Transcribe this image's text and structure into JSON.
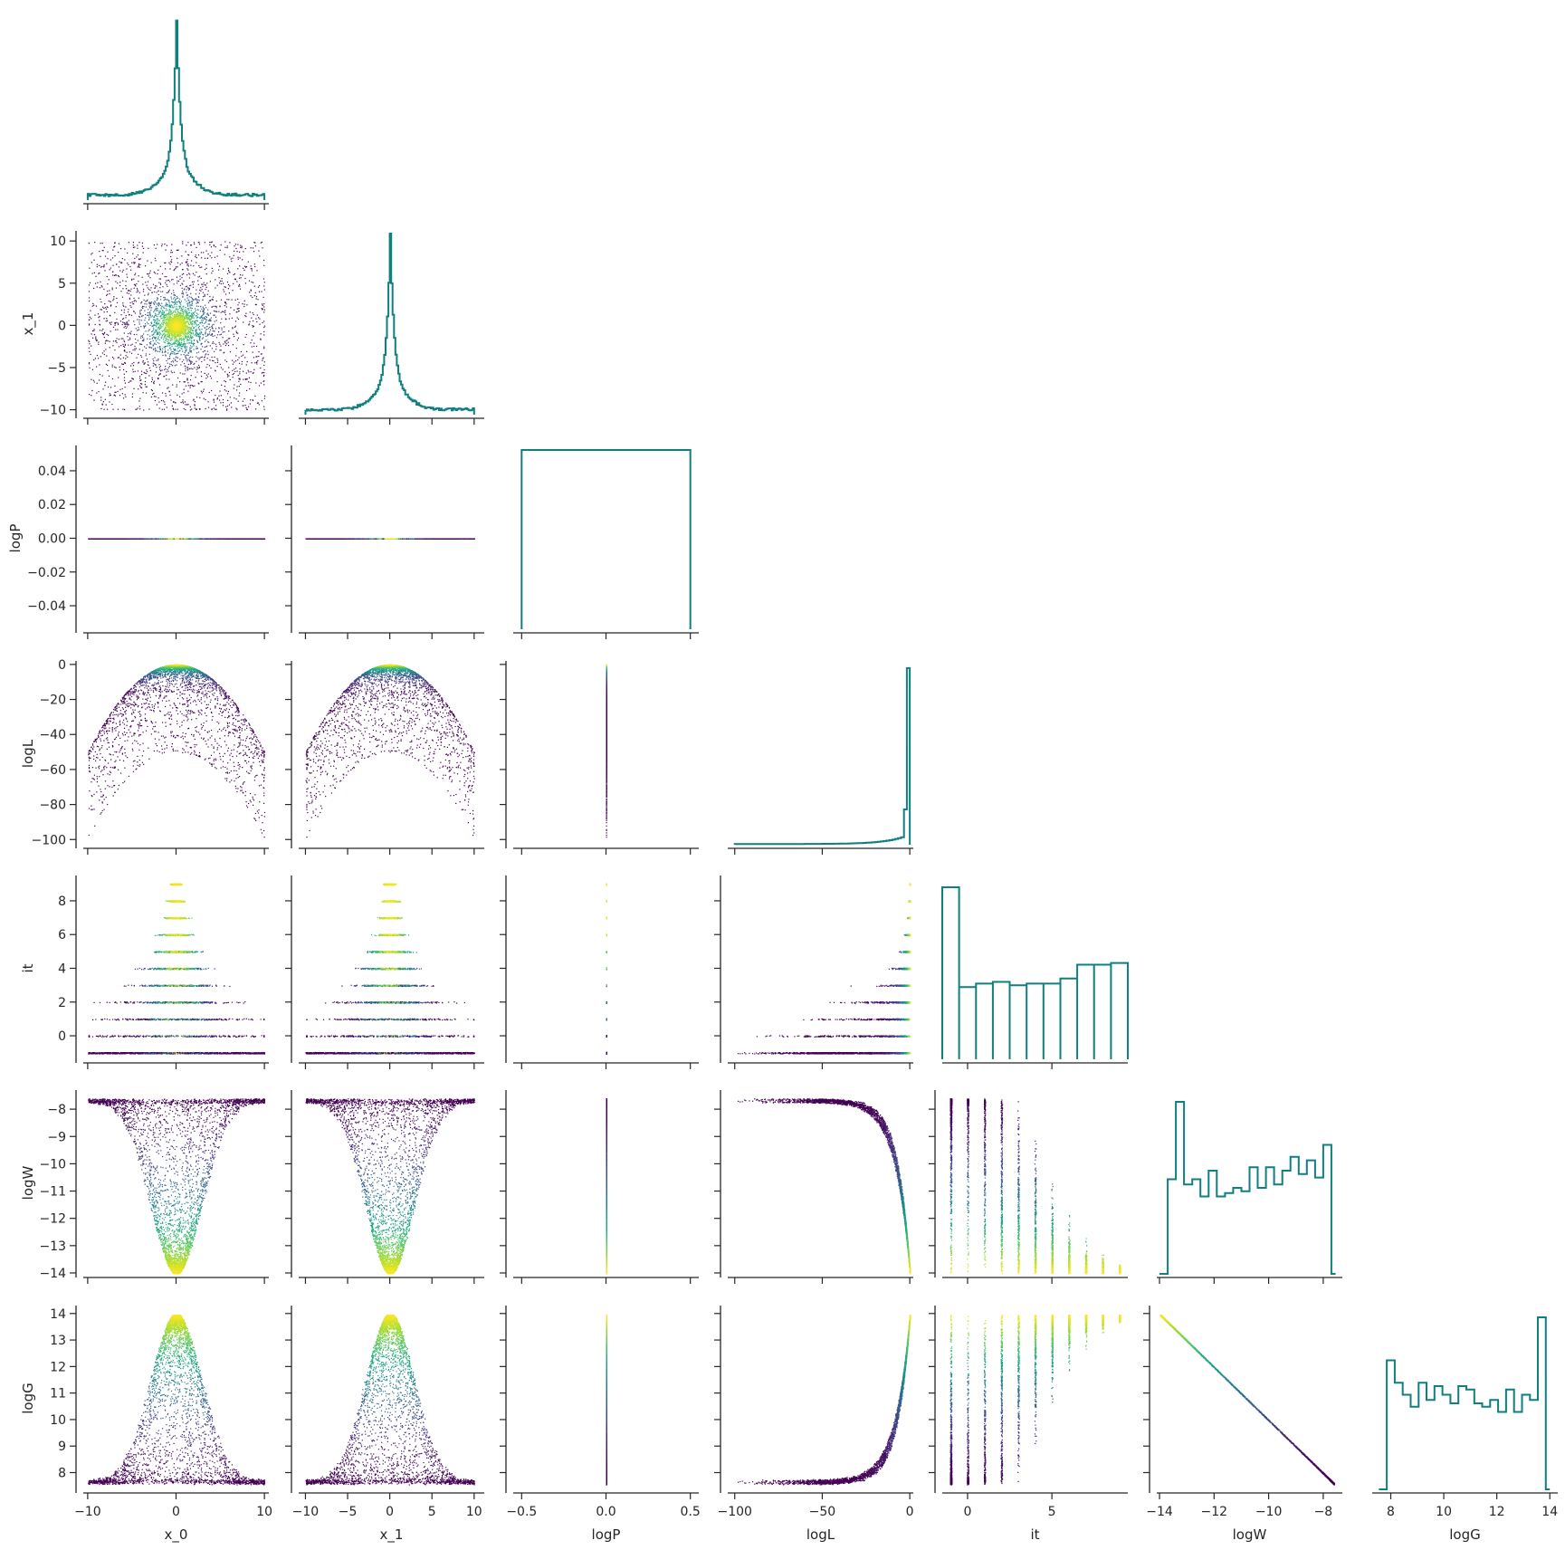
{
  "chart_data": {
    "type": "corner",
    "variables": [
      "x_0",
      "x_1",
      "logP",
      "logL",
      "it",
      "logW",
      "logG"
    ],
    "colormap": "viridis",
    "histogram_color": "#0f7f80",
    "grid": false,
    "axes": {
      "x_0": {
        "range": [
          -10.5,
          10.5
        ],
        "ticks": [
          -10,
          0,
          10
        ],
        "tick_labels": [
          "−10",
          "0",
          "10"
        ]
      },
      "x_1": {
        "range": [
          -10.8,
          11.2
        ],
        "ticks": [
          -10,
          -5,
          0,
          5,
          10
        ],
        "tick_labels": [
          "−10",
          "−5",
          "0",
          "5",
          "10"
        ]
      },
      "logP": {
        "range": [
          -0.055,
          0.055
        ],
        "ticks": [
          -0.04,
          -0.02,
          0.0,
          0.02,
          0.04
        ],
        "tick_labels": [
          "−0.04",
          "−0.02",
          "0.00",
          "0.02",
          "0.04"
        ],
        "x_range": [
          -0.55,
          0.55
        ],
        "x_ticks": [
          -0.5,
          0.0,
          0.5
        ],
        "x_tick_labels": [
          "−0.5",
          "0.0",
          "0.5"
        ]
      },
      "logL": {
        "range": [
          -104,
          2
        ],
        "ticks": [
          -100,
          -80,
          -60,
          -40,
          -20,
          0
        ],
        "tick_labels": [
          "−100",
          "−80",
          "−60",
          "−40",
          "−20",
          "0"
        ],
        "x_ticks": [
          -100,
          -50,
          0
        ],
        "x_tick_labels": [
          "−100",
          "−50",
          "0"
        ]
      },
      "it": {
        "range": [
          -1.5,
          9.5
        ],
        "ticks": [
          0,
          2,
          4,
          6,
          8
        ],
        "tick_labels": [
          "0",
          "2",
          "4",
          "6",
          "8"
        ],
        "x_ticks": [
          0,
          5
        ],
        "x_tick_labels": [
          "0",
          "5"
        ]
      },
      "logW": {
        "range": [
          -14.1,
          -7.3
        ],
        "ticks": [
          -14,
          -13,
          -12,
          -11,
          -10,
          -9,
          -8
        ],
        "tick_labels": [
          "−14",
          "−13",
          "−12",
          "−11",
          "−10",
          "−9",
          "−8"
        ],
        "x_ticks": [
          -14,
          -12,
          -10,
          -8
        ],
        "x_tick_labels": [
          "−14",
          "−12",
          "−10",
          "−8"
        ]
      },
      "logG": {
        "range": [
          7.3,
          14.3
        ],
        "ticks": [
          8,
          9,
          10,
          11,
          12,
          13,
          14
        ],
        "tick_labels": [
          "8",
          "9",
          "10",
          "11",
          "12",
          "13",
          "14"
        ],
        "x_ticks": [
          8,
          10,
          12,
          14
        ],
        "x_tick_labels": [
          "8",
          "10",
          "12",
          "14"
        ]
      }
    },
    "histograms": {
      "x_0": {
        "shape": "peaked",
        "center": 0,
        "approx_mode_count": 1
      },
      "x_1": {
        "shape": "peaked",
        "center": 0,
        "approx_mode_count": 1
      },
      "logP": {
        "shape": "single-bin",
        "value": 0.0
      },
      "logL": {
        "shape": "spike-at-max",
        "peak": -1
      },
      "it": {
        "bins": [
          -1,
          0,
          1,
          2,
          3,
          4,
          5,
          6,
          7,
          8,
          9
        ],
        "relative_heights": [
          1.0,
          0.42,
          0.44,
          0.45,
          0.43,
          0.44,
          0.44,
          0.47,
          0.55,
          0.55,
          0.56
        ]
      },
      "logW": {
        "edges": [
          -14.0,
          -13.7,
          -13.4,
          -13.1,
          -12.8,
          -12.5,
          -12.2,
          -11.9,
          -11.6,
          -11.3,
          -11.0,
          -10.7,
          -10.4,
          -10.1,
          -9.8,
          -9.5,
          -9.2,
          -8.9,
          -8.6,
          -8.3,
          -8.0,
          -7.7,
          -7.55
        ],
        "relative_heights": [
          0.0,
          0.55,
          1.0,
          0.52,
          0.55,
          0.45,
          0.6,
          0.45,
          0.47,
          0.5,
          0.48,
          0.62,
          0.5,
          0.62,
          0.52,
          0.6,
          0.68,
          0.58,
          0.66,
          0.56,
          0.75,
          0.0
        ]
      },
      "logG": {
        "edges": [
          7.55,
          7.85,
          8.15,
          8.45,
          8.75,
          9.05,
          9.35,
          9.65,
          9.95,
          10.25,
          10.55,
          10.85,
          11.15,
          11.45,
          11.75,
          12.05,
          12.35,
          12.65,
          12.95,
          13.25,
          13.55,
          13.85,
          14.0
        ],
        "relative_heights": [
          0.0,
          0.75,
          0.62,
          0.55,
          0.48,
          0.62,
          0.52,
          0.6,
          0.55,
          0.5,
          0.6,
          0.58,
          0.5,
          0.48,
          0.52,
          0.45,
          0.58,
          0.45,
          0.55,
          0.52,
          1.0,
          0.0
        ]
      }
    },
    "scatter": "colored by local density (viridis); x_0 and x_1 concentrated near 0; logL = -x_0^2 - x_1^2 envelope; it levels -1..9; logW ~ logL-dependent; logG = -logW + const"
  }
}
